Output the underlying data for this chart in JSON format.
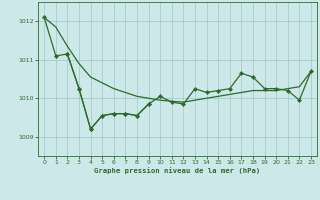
{
  "title": "Graphe pression niveau de la mer (hPa)",
  "bg_color": "#cce8e8",
  "grid_color": "#aacccc",
  "line_color": "#2d6b2d",
  "ylim": [
    1008.5,
    1012.5
  ],
  "xlim": [
    -0.5,
    23.5
  ],
  "yticks": [
    1009,
    1010,
    1011,
    1012
  ],
  "xticks": [
    0,
    1,
    2,
    3,
    4,
    5,
    6,
    7,
    8,
    9,
    10,
    11,
    12,
    13,
    14,
    15,
    16,
    17,
    18,
    19,
    20,
    21,
    22,
    23
  ],
  "line1_x": [
    0,
    1,
    2,
    3,
    4,
    5,
    6,
    7,
    8,
    9,
    10,
    11,
    12,
    13,
    14,
    15,
    16,
    17,
    18,
    19,
    20,
    21,
    22,
    23
  ],
  "line1_y": [
    1012.1,
    1011.85,
    1011.35,
    1010.9,
    1010.55,
    1010.4,
    1010.25,
    1010.15,
    1010.05,
    1010.0,
    1009.95,
    1009.92,
    1009.9,
    1009.95,
    1010.0,
    1010.05,
    1010.1,
    1010.15,
    1010.2,
    1010.2,
    1010.2,
    1010.25,
    1010.3,
    1010.7
  ],
  "line2_x": [
    0,
    1,
    2,
    3,
    4,
    5,
    6,
    7,
    8,
    9
  ],
  "line2_y": [
    1012.1,
    1011.1,
    1011.15,
    1010.25,
    1009.2,
    1009.55,
    1009.6,
    1009.6,
    1009.55,
    1009.85
  ],
  "line3_x": [
    2,
    3,
    4,
    5,
    6,
    7,
    8,
    9,
    10,
    11,
    12,
    13,
    14,
    15,
    16,
    17,
    18,
    19,
    20,
    21,
    22,
    23
  ],
  "line3_y": [
    1011.15,
    1010.25,
    1009.2,
    1009.55,
    1009.6,
    1009.6,
    1009.55,
    1009.85,
    1010.05,
    1009.9,
    1009.85,
    1010.25,
    1010.15,
    1010.2,
    1010.25,
    1010.65,
    1010.55,
    1010.25,
    1010.25,
    1010.2,
    1009.95,
    1010.7
  ],
  "ms": 2.0,
  "lw": 0.9
}
